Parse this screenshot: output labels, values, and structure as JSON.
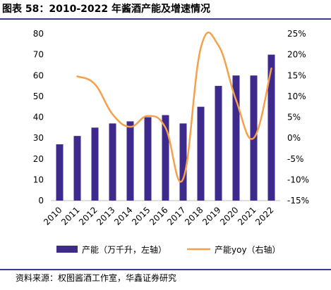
{
  "title": "图表 58：2010-2022 年酱酒产能及增速情况",
  "source": "资料来源：权图酱酒工作室，华鑫证券研究",
  "colors": {
    "bar": "#3d2a8c",
    "line": "#f5a04a",
    "rule": "#3a3a8a"
  },
  "chart_data": {
    "type": "bar",
    "categories": [
      "2010",
      "2011",
      "2012",
      "2013",
      "2014",
      "2015",
      "2016",
      "2017",
      "2018",
      "2019",
      "2020",
      "2021",
      "2022"
    ],
    "series": [
      {
        "name": "产能（万千升，左轴）",
        "type": "bar",
        "axis": "left",
        "values": [
          27,
          31,
          35,
          37,
          38,
          40,
          41,
          37,
          45,
          55,
          60,
          60,
          70
        ]
      },
      {
        "name": "产能yoy（右轴）",
        "type": "line",
        "axis": "right",
        "values": [
          null,
          14.8,
          12.9,
          5.7,
          2.7,
          5.3,
          2.5,
          -9.8,
          21.6,
          22.2,
          9.1,
          0,
          16.7
        ]
      }
    ],
    "ylim_left": [
      0,
      80
    ],
    "yticks_left": [
      "0",
      "10",
      "20",
      "30",
      "40",
      "50",
      "60",
      "70",
      "80"
    ],
    "ylim_right": [
      -15,
      25
    ],
    "yticks_right": [
      "-15%",
      "-10%",
      "-5%",
      "0%",
      "5%",
      "10%",
      "15%",
      "20%",
      "25%"
    ],
    "legend_position": "bottom",
    "grid": false
  }
}
